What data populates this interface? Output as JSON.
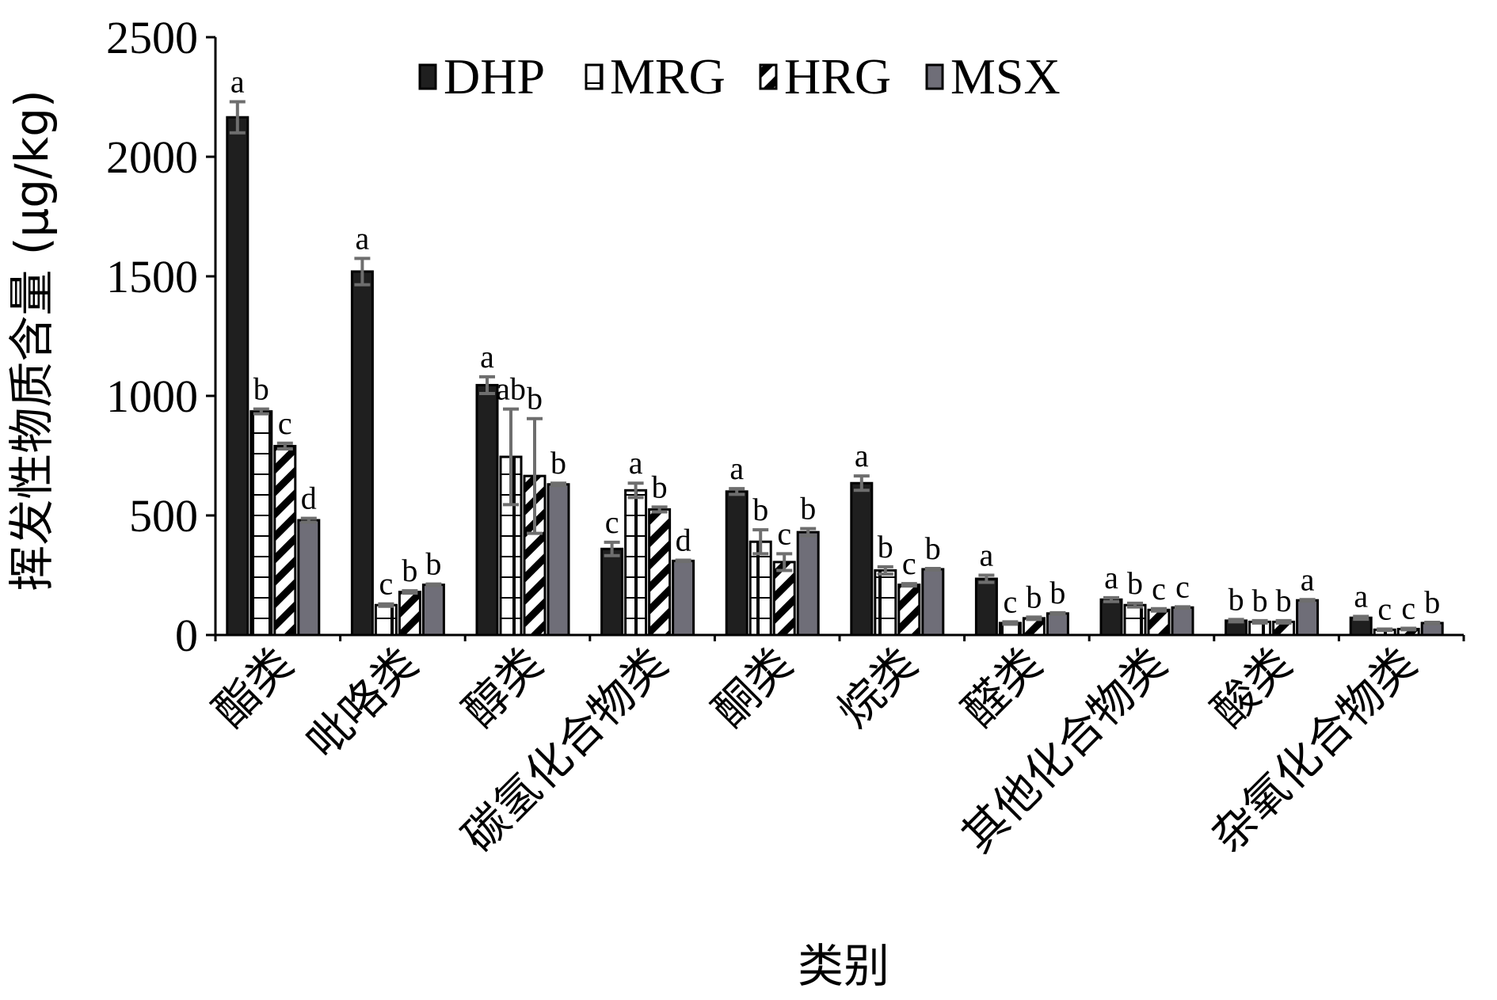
{
  "chart_data": {
    "type": "bar",
    "title": "",
    "xlabel": "类别",
    "ylabel": "挥发性物质含量 (μg/kg)",
    "ylim": [
      0,
      2500
    ],
    "yticks": [
      0,
      500,
      1000,
      1500,
      2000,
      2500
    ],
    "grid": false,
    "legend_position": "top-center",
    "categories": [
      "酯类",
      "吡咯类",
      "醇类",
      "碳氢化合物类",
      "酮类",
      "烷类",
      "醛类",
      "其他化合物类",
      "酸类",
      "杂氧化合物类"
    ],
    "series": [
      {
        "name": "DHP",
        "pattern": "solid-black",
        "values": [
          2165,
          1520,
          1045,
          360,
          600,
          635,
          235,
          148,
          60,
          72
        ],
        "errors": [
          65,
          55,
          35,
          28,
          12,
          30,
          15,
          8,
          5,
          6
        ],
        "labels": [
          "a",
          "a",
          "a",
          "c",
          "a",
          "a",
          "a",
          "a",
          "b",
          "a"
        ]
      },
      {
        "name": "MRG",
        "pattern": "grid-white",
        "values": [
          935,
          125,
          745,
          605,
          390,
          270,
          50,
          125,
          55,
          22
        ],
        "errors": [
          10,
          5,
          200,
          30,
          50,
          15,
          5,
          8,
          5,
          3
        ],
        "labels": [
          "b",
          "c",
          "ab",
          "a",
          "b",
          "b",
          "c",
          "b",
          "b",
          "c"
        ]
      },
      {
        "name": "HRG",
        "pattern": "diagonal",
        "values": [
          790,
          180,
          665,
          525,
          305,
          210,
          70,
          105,
          55,
          25
        ],
        "errors": [
          12,
          5,
          240,
          10,
          35,
          5,
          5,
          5,
          5,
          3
        ],
        "labels": [
          "c",
          "b",
          "b",
          "b",
          "c",
          "c",
          "b",
          "c",
          "b",
          "c"
        ]
      },
      {
        "name": "MSX",
        "pattern": "solid-gray",
        "values": [
          480,
          210,
          630,
          310,
          430,
          275,
          90,
          115,
          145,
          50
        ],
        "errors": [
          8,
          3,
          5,
          3,
          15,
          3,
          3,
          3,
          3,
          3
        ],
        "labels": [
          "d",
          "b",
          "b",
          "d",
          "b",
          "b",
          "b",
          "c",
          "a",
          "b"
        ]
      }
    ],
    "colors": {
      "DHP": "#1f1f1f",
      "MRG": "#ffffff",
      "HRG": "#ffffff",
      "MSX": "#6f6e78",
      "error_bar": "#6e6e6e",
      "axis": "#000000"
    }
  }
}
